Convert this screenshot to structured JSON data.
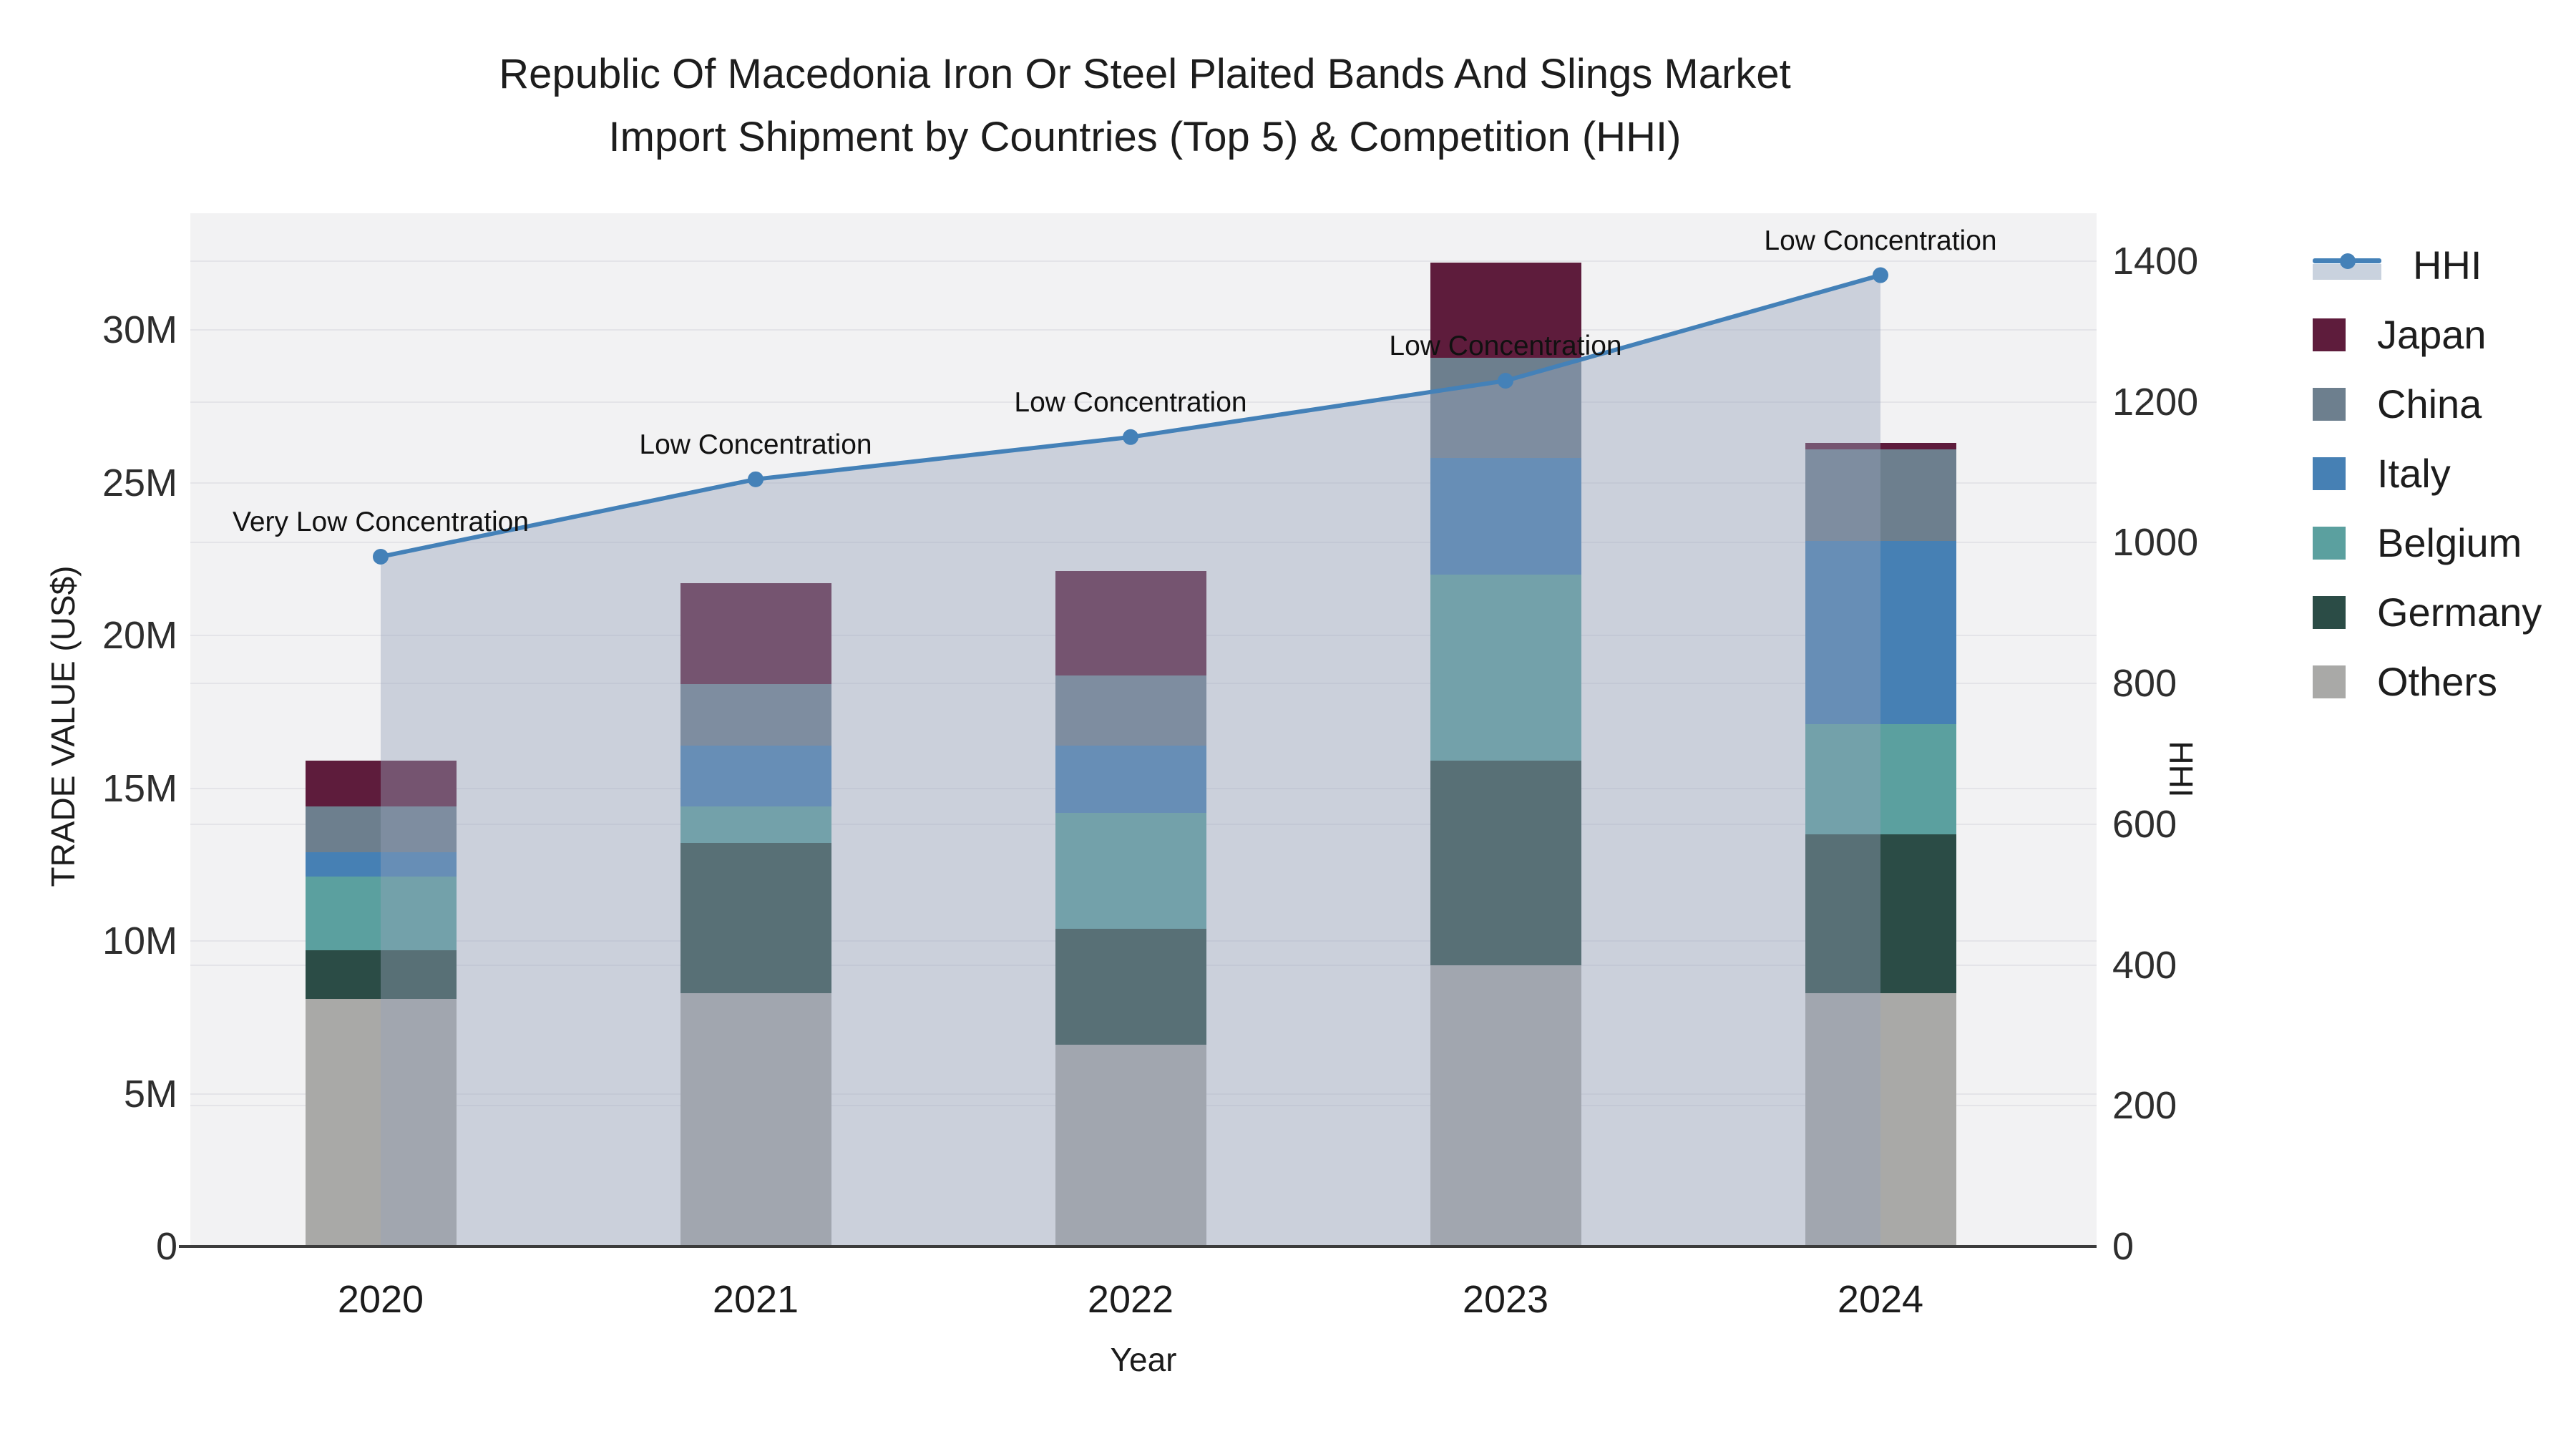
{
  "chart_data": {
    "type": "bar+line combo (stacked bars, secondary-axis line with area fill)",
    "title_line1": "Republic Of Macedonia Iron Or Steel Plaited Bands And Slings Market",
    "title_line2": "Import Shipment by Countries (Top 5) & Competition (HHI)",
    "categories": [
      "2020",
      "2021",
      "2022",
      "2023",
      "2024"
    ],
    "series": [
      {
        "name": "Japan",
        "color": "#5e1c3c",
        "values": [
          1.5,
          3.3,
          3.4,
          3.1,
          0.2
        ]
      },
      {
        "name": "China",
        "color": "#6d7f8e",
        "values": [
          1.5,
          2.0,
          2.3,
          3.3,
          3.0
        ]
      },
      {
        "name": "Italy",
        "color": "#4680b4",
        "values": [
          0.8,
          2.0,
          2.2,
          3.8,
          6.0
        ]
      },
      {
        "name": "Belgium",
        "color": "#5ba09f",
        "values": [
          2.4,
          1.2,
          3.8,
          6.1,
          3.6
        ]
      },
      {
        "name": "Germany",
        "color": "#2b4c46",
        "values": [
          1.6,
          4.9,
          3.8,
          6.7,
          5.2
        ]
      },
      {
        "name": "Others",
        "color": "#a9a9a7",
        "values": [
          8.1,
          8.3,
          6.6,
          9.2,
          8.3
        ]
      }
    ],
    "values_unit": "M US$ (millions, read from left axis)",
    "stack_order_bottom_to_top": [
      "Others",
      "Germany",
      "Belgium",
      "Italy",
      "China",
      "Japan"
    ],
    "line_series": {
      "name": "HHI",
      "color": "#4481b8",
      "area_fill_color": "rgba(151,163,186,0.42)",
      "values": [
        980,
        1090,
        1150,
        1230,
        1380
      ]
    },
    "annotations": [
      {
        "category": "2020",
        "text": "Very Low Concentration"
      },
      {
        "category": "2021",
        "text": "Low Concentration"
      },
      {
        "category": "2022",
        "text": "Low Concentration"
      },
      {
        "category": "2023",
        "text": "Low Concentration"
      },
      {
        "category": "2024",
        "text": "Low Concentration"
      }
    ],
    "y_left": {
      "label": "TRADE VALUE (US$)",
      "ticks": [
        "0",
        "5M",
        "10M",
        "15M",
        "20M",
        "25M",
        "30M"
      ],
      "tick_values": [
        0,
        5,
        10,
        15,
        20,
        25,
        30
      ],
      "range": [
        0,
        33.82
      ]
    },
    "y_right": {
      "label": "HHI",
      "ticks": [
        "0",
        "200",
        "400",
        "600",
        "800",
        "1000",
        "1200",
        "1400"
      ],
      "tick_values": [
        0,
        200,
        400,
        600,
        800,
        1000,
        1200,
        1400
      ],
      "range": [
        0,
        1468
      ]
    },
    "x_label": "Year",
    "legend_position": "right",
    "grid": true,
    "plot_bg_color": "#f2f2f3",
    "grid_color": "#e4e4e8",
    "axis_line_color": "#3c3c3c"
  }
}
